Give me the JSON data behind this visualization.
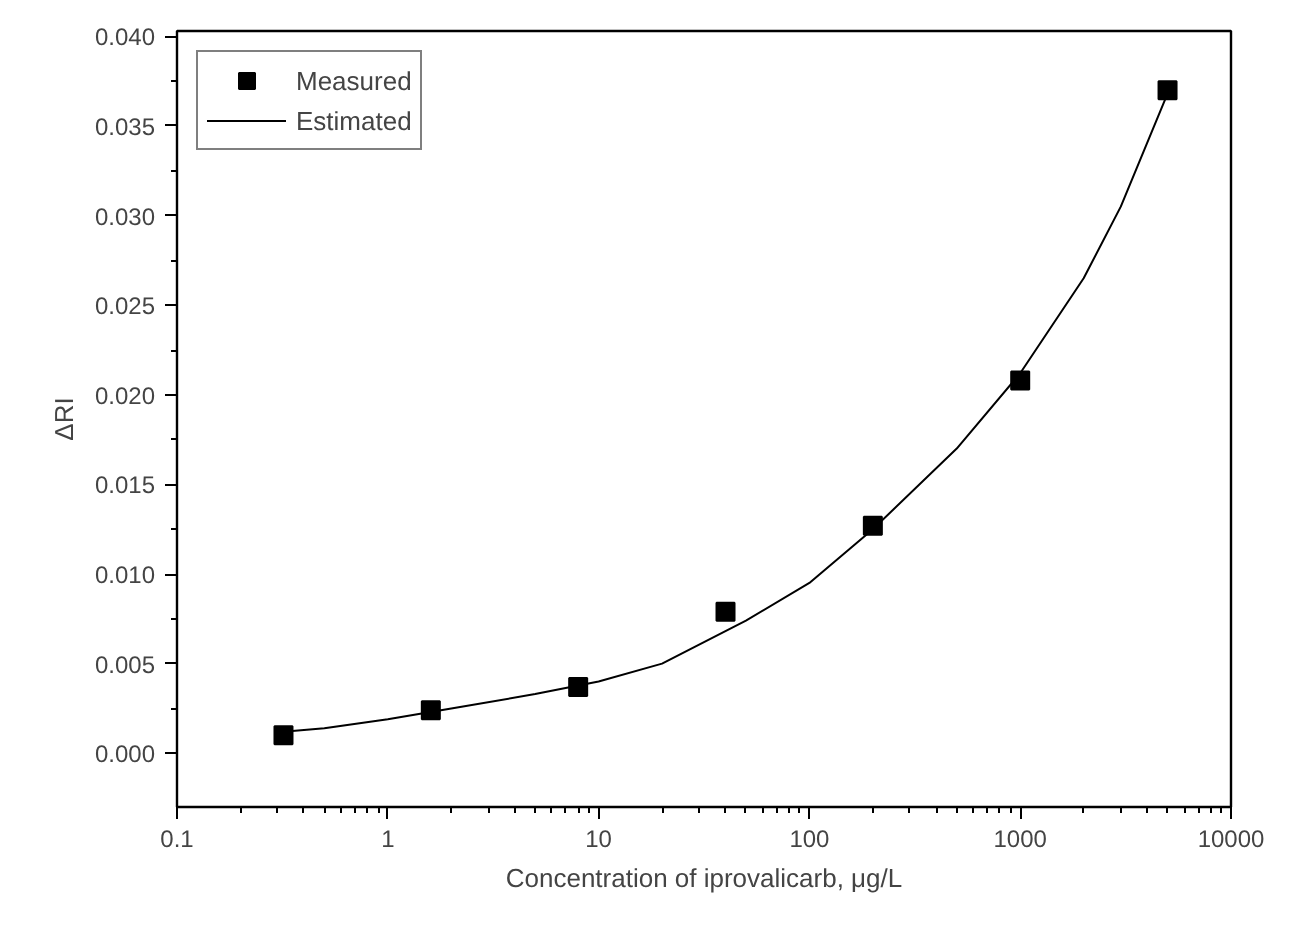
{
  "chart_data": {
    "type": "scatter",
    "xlabel": "Concentration of iprovalicarb, μg/L",
    "ylabel": "ΔRI",
    "log": "x",
    "grid": false,
    "legend": "top left",
    "xlim": [
      0.1,
      10000
    ],
    "xticks": [
      0.1,
      1,
      10,
      100,
      1000,
      10000
    ],
    "ylim": [
      -0.003,
      0.0403
    ],
    "yticks": [
      {
        "value": 0,
        "label": "0.000"
      },
      {
        "value": 0.005,
        "label": "0.005"
      },
      {
        "value": 0.01,
        "label": "0.010"
      },
      {
        "value": 0.015,
        "label": "0.015"
      },
      {
        "value": 0.02,
        "label": "0.020"
      },
      {
        "value": 0.025,
        "label": "0.025"
      },
      {
        "value": 0.03,
        "label": "0.030"
      },
      {
        "value": 0.035,
        "label": "0.035"
      },
      {
        "value": 0.04,
        "label": "0.040"
      }
    ],
    "series": [
      {
        "name": "Measured",
        "type": "scatter",
        "marker": "square",
        "color": "#000000",
        "x": [
          0.32,
          1.6,
          8,
          40,
          200,
          1000,
          5000
        ],
        "values": [
          0.001,
          0.0024,
          0.0037,
          0.0079,
          0.0127,
          0.0208,
          0.037
        ]
      },
      {
        "name": "Estimated",
        "type": "line",
        "marker": "none",
        "line_style": "solid",
        "color": "#000000",
        "x": [
          0.32,
          0.5,
          1,
          2,
          5,
          10,
          20,
          50,
          100,
          200,
          500,
          1000,
          2000,
          3000,
          5000
        ],
        "values": [
          0.0012,
          0.0014,
          0.0019,
          0.0025,
          0.0033,
          0.004,
          0.005,
          0.0074,
          0.0095,
          0.0125,
          0.017,
          0.0212,
          0.0265,
          0.0305,
          0.0368
        ]
      }
    ]
  }
}
